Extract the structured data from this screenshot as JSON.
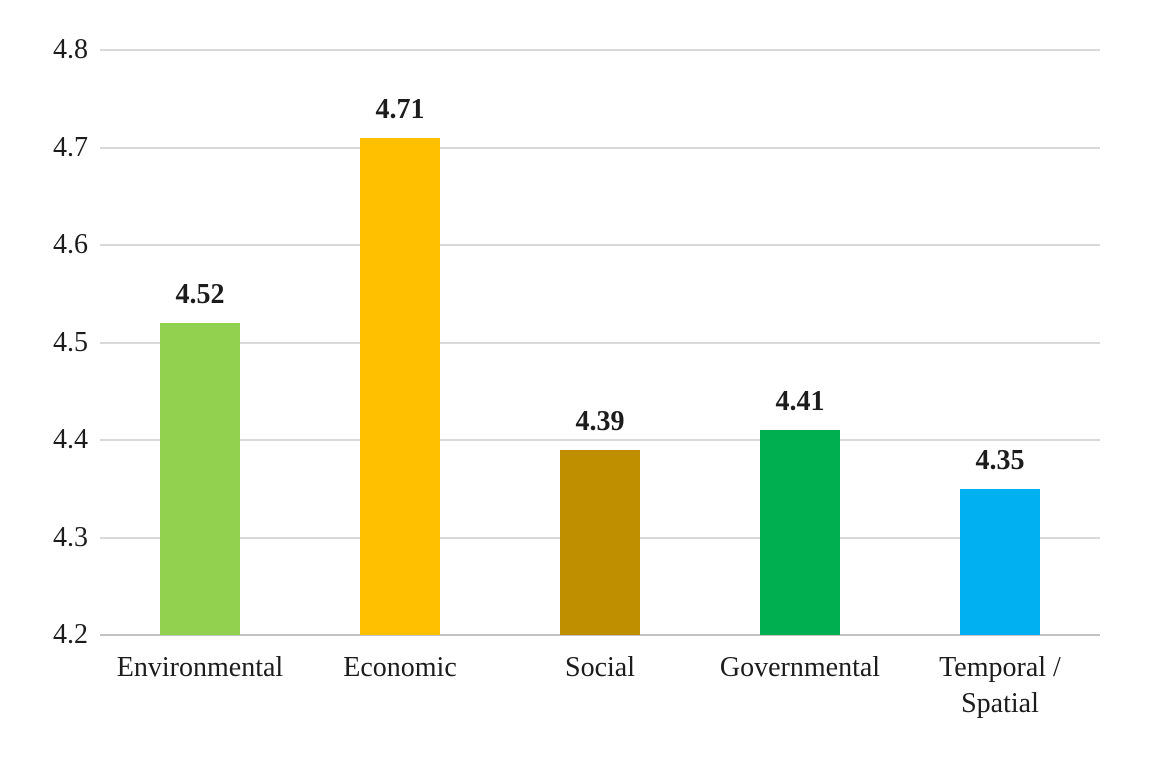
{
  "chart_data": {
    "type": "bar",
    "title": "",
    "xlabel": "",
    "ylabel": "",
    "categories": [
      "Environmental",
      "Economic",
      "Social",
      "Governmental",
      "Temporal / Spatial"
    ],
    "values": [
      4.52,
      4.71,
      4.39,
      4.41,
      4.35
    ],
    "data_labels": [
      "4.52",
      "4.71",
      "4.39",
      "4.41",
      "4.35"
    ],
    "bar_colors": [
      "#92D050",
      "#FFC000",
      "#BF8F00",
      "#00B050",
      "#00B0F0"
    ],
    "ylim": [
      4.2,
      4.8
    ],
    "y_ticks": [
      "4.2",
      "4.3",
      "4.4",
      "4.5",
      "4.6",
      "4.7",
      "4.8"
    ],
    "grid": true,
    "legend": "none",
    "gridline_color": "#D9D9D9",
    "baseline_color": "#C3C3C3",
    "text_color": "#1C1C1C"
  }
}
